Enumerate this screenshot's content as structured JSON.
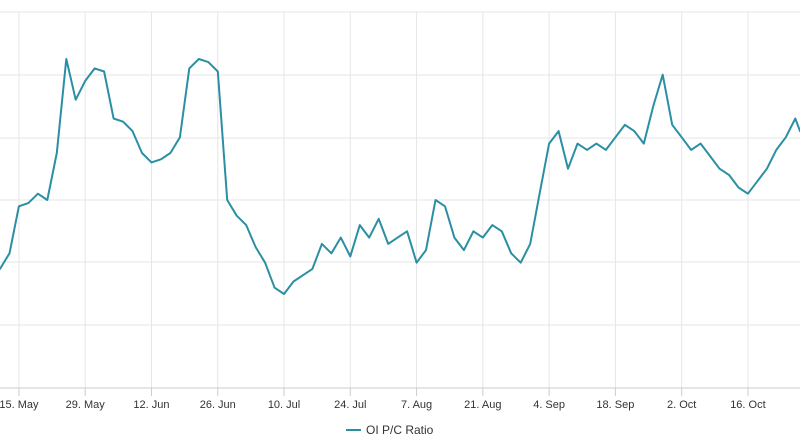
{
  "chart_data": {
    "type": "line",
    "title": "",
    "xlabel": "",
    "ylabel": "",
    "grid": true,
    "legend_position": "bottom-center",
    "colors": {
      "line": "#2b8fa3",
      "grid": "#e6e6e6",
      "axis": "#cccccc",
      "text": "#333333"
    },
    "x_ticks": [
      "15. May",
      "29. May",
      "12. Jun",
      "26. Jun",
      "10. Jul",
      "24. Jul",
      "7. Aug",
      "21. Aug",
      "4. Sep",
      "18. Sep",
      "2. Oct",
      "16. Oct"
    ],
    "x_range": [
      "2023-05-11",
      "2023-10-27"
    ],
    "series": [
      {
        "name": "OI P/C Ratio",
        "x": [
          "2023-05-11",
          "2023-05-13",
          "2023-05-15",
          "2023-05-17",
          "2023-05-19",
          "2023-05-21",
          "2023-05-23",
          "2023-05-25",
          "2023-05-27",
          "2023-05-29",
          "2023-05-31",
          "2023-06-02",
          "2023-06-04",
          "2023-06-06",
          "2023-06-08",
          "2023-06-10",
          "2023-06-12",
          "2023-06-14",
          "2023-06-16",
          "2023-06-18",
          "2023-06-20",
          "2023-06-22",
          "2023-06-24",
          "2023-06-26",
          "2023-06-28",
          "2023-06-30",
          "2023-07-02",
          "2023-07-04",
          "2023-07-06",
          "2023-07-08",
          "2023-07-10",
          "2023-07-12",
          "2023-07-14",
          "2023-07-16",
          "2023-07-18",
          "2023-07-20",
          "2023-07-22",
          "2023-07-24",
          "2023-07-26",
          "2023-07-28",
          "2023-07-30",
          "2023-08-01",
          "2023-08-03",
          "2023-08-05",
          "2023-08-07",
          "2023-08-09",
          "2023-08-11",
          "2023-08-13",
          "2023-08-15",
          "2023-08-17",
          "2023-08-19",
          "2023-08-21",
          "2023-08-23",
          "2023-08-25",
          "2023-08-27",
          "2023-08-29",
          "2023-08-31",
          "2023-09-02",
          "2023-09-04",
          "2023-09-06",
          "2023-09-08",
          "2023-09-10",
          "2023-09-12",
          "2023-09-14",
          "2023-09-16",
          "2023-09-18",
          "2023-09-20",
          "2023-09-22",
          "2023-09-24",
          "2023-09-26",
          "2023-09-28",
          "2023-09-30",
          "2023-10-02",
          "2023-10-04",
          "2023-10-06",
          "2023-10-08",
          "2023-10-10",
          "2023-10-12",
          "2023-10-14",
          "2023-10-16",
          "2023-10-18",
          "2023-10-20",
          "2023-10-22",
          "2023-10-24",
          "2023-10-26",
          "2023-10-27"
        ],
        "values": [
          0.98,
          1.03,
          1.18,
          1.19,
          1.22,
          1.2,
          1.35,
          1.65,
          1.52,
          1.58,
          1.62,
          1.61,
          1.46,
          1.45,
          1.42,
          1.35,
          1.32,
          1.33,
          1.35,
          1.4,
          1.62,
          1.65,
          1.64,
          1.61,
          1.2,
          1.15,
          1.12,
          1.05,
          1.0,
          0.92,
          0.9,
          0.94,
          0.96,
          0.98,
          1.06,
          1.03,
          1.08,
          1.02,
          1.12,
          1.08,
          1.14,
          1.06,
          1.08,
          1.1,
          1.0,
          1.04,
          1.2,
          1.18,
          1.08,
          1.04,
          1.1,
          1.08,
          1.12,
          1.1,
          1.03,
          1.0,
          1.06,
          1.22,
          1.38,
          1.42,
          1.3,
          1.38,
          1.36,
          1.38,
          1.36,
          1.4,
          1.44,
          1.42,
          1.38,
          1.5,
          1.6,
          1.44,
          1.4,
          1.36,
          1.38,
          1.34,
          1.3,
          1.28,
          1.24,
          1.22,
          1.26,
          1.3,
          1.36,
          1.4,
          1.46,
          1.42
        ]
      }
    ]
  }
}
